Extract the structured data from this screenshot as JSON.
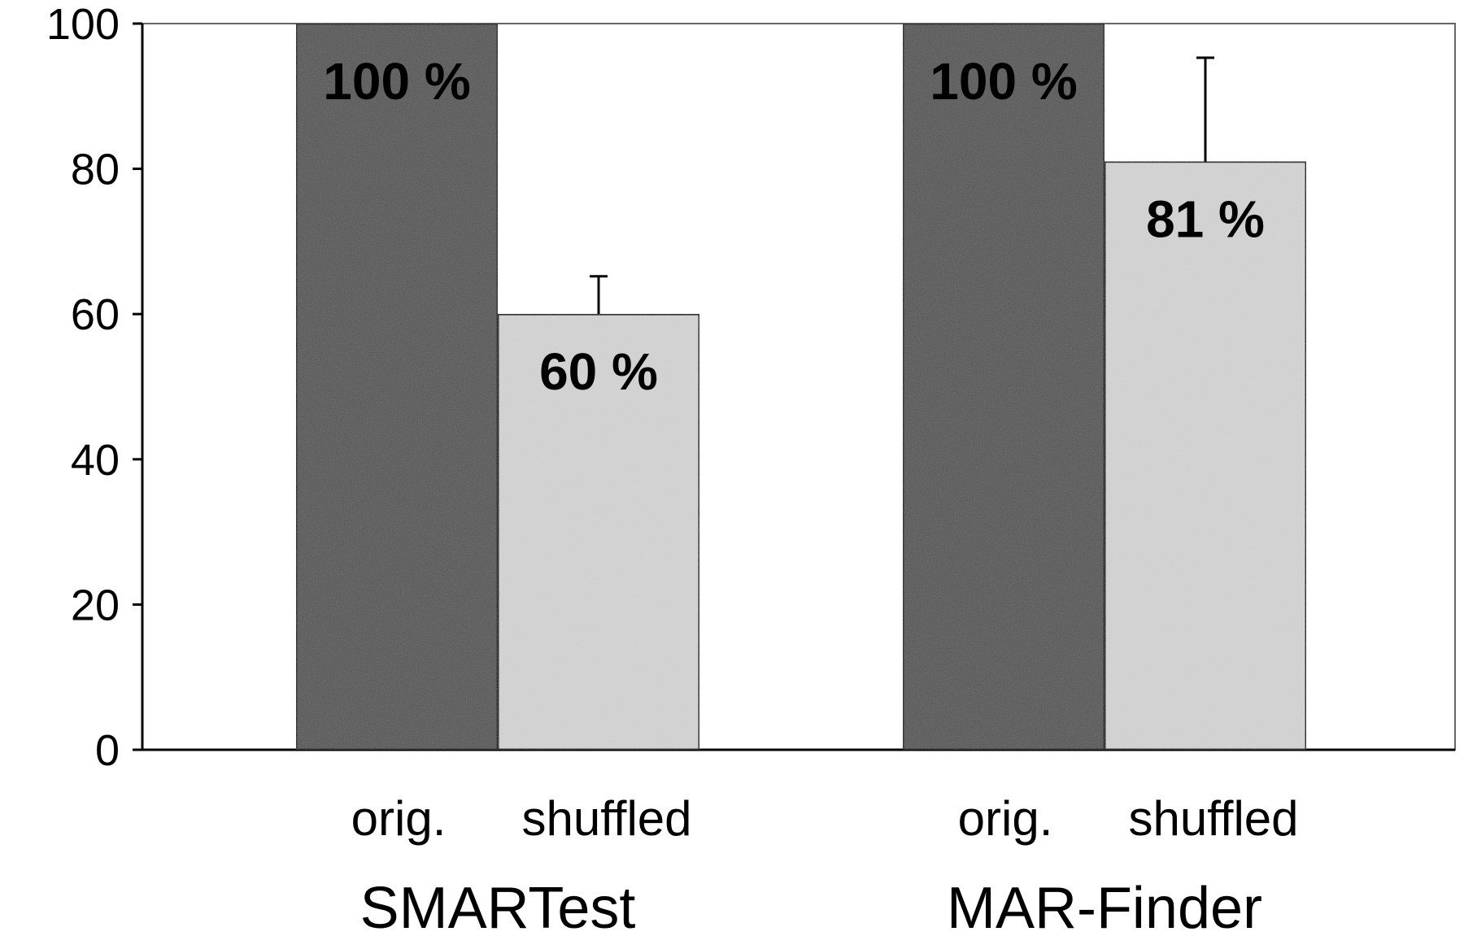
{
  "chart_data": {
    "type": "bar",
    "title": "",
    "xlabel": "",
    "ylabel": "",
    "ylim": [
      0,
      100
    ],
    "yticks": [
      0,
      20,
      40,
      60,
      80,
      100
    ],
    "grid": false,
    "groups": [
      {
        "name": "SMARTest",
        "bars": [
          {
            "category": "orig.",
            "value": 100,
            "label": "100 %",
            "color": "#555555"
          },
          {
            "category": "shuffled",
            "value": 60,
            "label": "60 %",
            "color": "#d4d4d4",
            "error_plus": 5.2
          }
        ]
      },
      {
        "name": "MAR-Finder",
        "bars": [
          {
            "category": "orig.",
            "value": 100,
            "label": "100 %",
            "color": "#555555"
          },
          {
            "category": "shuffled",
            "value": 81,
            "label": "81 %",
            "color": "#d4d4d4",
            "error_plus": 14.3
          }
        ]
      }
    ]
  }
}
